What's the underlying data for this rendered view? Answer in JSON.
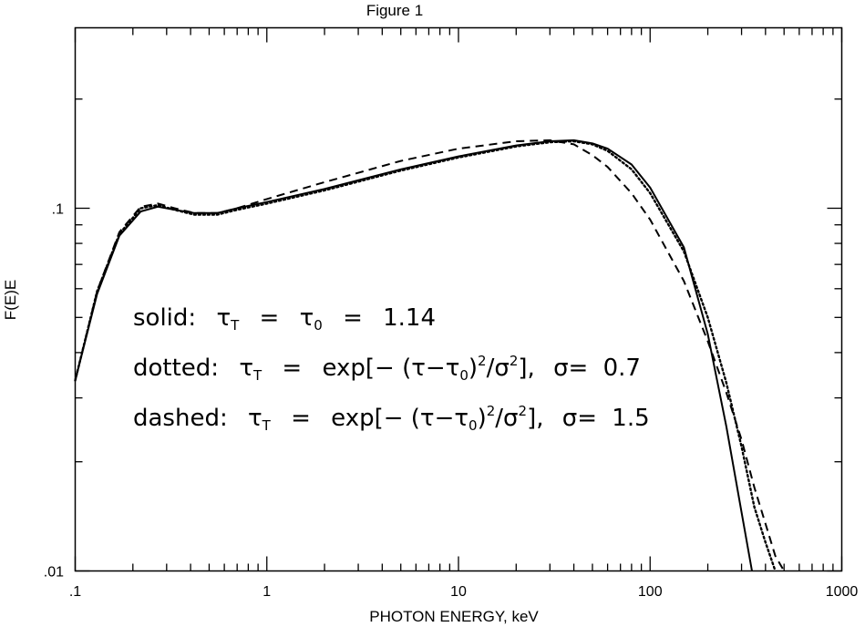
{
  "chart_data": {
    "type": "line",
    "title": "Figure 1",
    "xlabel": "PHOTON ENERGY, keV",
    "ylabel": "F(E)E",
    "x_scale": "log",
    "y_scale": "log",
    "xlim": [
      0.1,
      1000
    ],
    "ylim": [
      0.01,
      0.25
    ],
    "x_tick_labels": [
      ".1",
      "1",
      "10",
      "100",
      "1000"
    ],
    "y_tick_labels": [
      ".1",
      ".01"
    ],
    "grid": false,
    "series": [
      {
        "style": "solid",
        "x": [
          0.1,
          0.13,
          0.17,
          0.22,
          0.27,
          0.33,
          0.42,
          0.55,
          0.7,
          1.0,
          2.0,
          5.0,
          10,
          20,
          30,
          40,
          50,
          60,
          80,
          100,
          150,
          200,
          250,
          300,
          340
        ],
        "y": [
          0.0335,
          0.058,
          0.084,
          0.098,
          0.101,
          0.099,
          0.097,
          0.097,
          0.1,
          0.104,
          0.113,
          0.128,
          0.139,
          0.149,
          0.153,
          0.154,
          0.151,
          0.146,
          0.132,
          0.114,
          0.078,
          0.045,
          0.025,
          0.0145,
          0.01
        ]
      },
      {
        "style": "dotted",
        "x": [
          0.1,
          0.13,
          0.17,
          0.22,
          0.27,
          0.33,
          0.42,
          0.55,
          0.7,
          1.0,
          2.0,
          5.0,
          10,
          20,
          30,
          40,
          50,
          60,
          80,
          100,
          150,
          200,
          250,
          300,
          350,
          400,
          450
        ],
        "y": [
          0.0335,
          0.059,
          0.085,
          0.1,
          0.102,
          0.099,
          0.096,
          0.096,
          0.099,
          0.103,
          0.112,
          0.127,
          0.138,
          0.148,
          0.152,
          0.153,
          0.15,
          0.144,
          0.128,
          0.11,
          0.076,
          0.05,
          0.033,
          0.022,
          0.015,
          0.012,
          0.01
        ]
      },
      {
        "style": "dashed",
        "x": [
          0.1,
          0.13,
          0.17,
          0.22,
          0.27,
          0.33,
          0.42,
          0.55,
          0.7,
          1.0,
          2.0,
          5.0,
          10,
          20,
          30,
          40,
          50,
          60,
          80,
          100,
          150,
          200,
          250,
          300,
          350,
          400,
          450,
          500
        ],
        "y": [
          0.0335,
          0.059,
          0.086,
          0.101,
          0.103,
          0.1,
          0.097,
          0.097,
          0.1,
          0.106,
          0.118,
          0.135,
          0.146,
          0.153,
          0.154,
          0.15,
          0.14,
          0.13,
          0.11,
          0.093,
          0.063,
          0.043,
          0.031,
          0.023,
          0.017,
          0.0135,
          0.011,
          0.0095
        ]
      }
    ],
    "annotations": [
      {
        "prefix": "solid:",
        "line": 1
      },
      {
        "prefix": "dotted:",
        "line": 2
      },
      {
        "prefix": "dashed:",
        "line": 3
      }
    ]
  },
  "annotation_text": {
    "solid_prefix": "solid:",
    "dotted_prefix": "dotted:",
    "dashed_prefix": "dashed:",
    "tau": "τ",
    "sub_T": "T",
    "sub_0": "0",
    "eq": "=",
    "solid_value": "1.14",
    "exp_open": "exp[− (τ−τ",
    "sup_2": "2",
    "over_sigma": "/σ",
    "close": "],",
    "sigma_eq": "σ= ",
    "dotted_sigma": "0.7",
    "dashed_sigma": "1.5"
  }
}
